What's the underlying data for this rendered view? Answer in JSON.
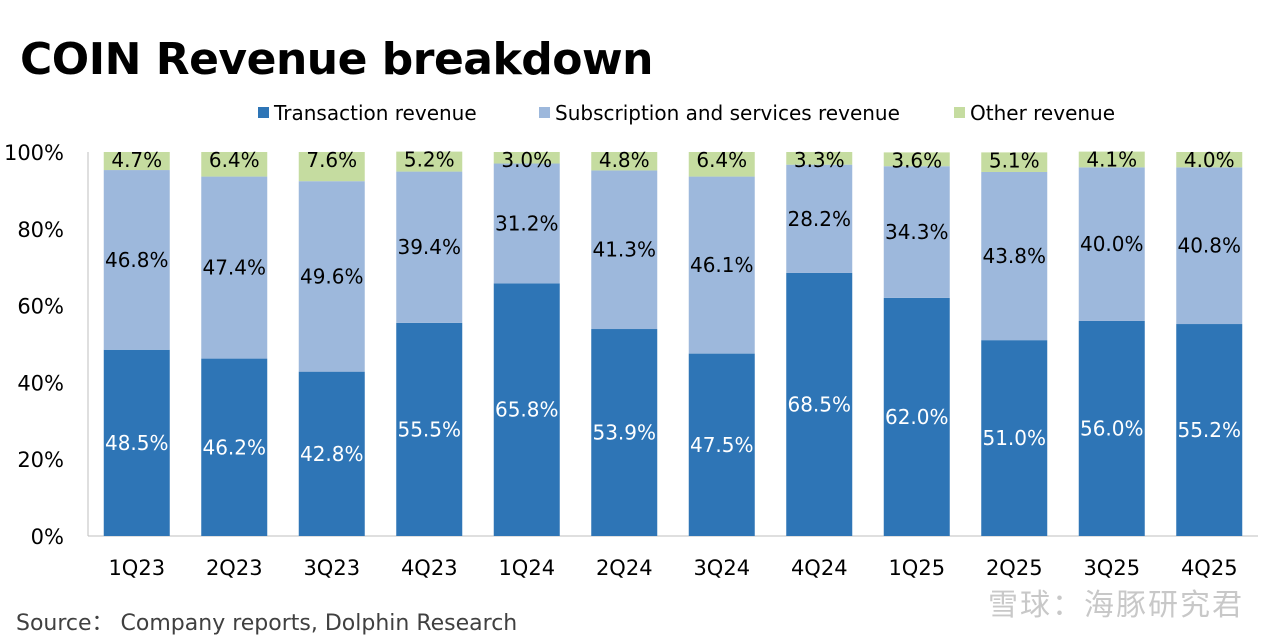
{
  "title": "COIN Revenue breakdown",
  "source": "Source：  Company reports, Dolphin Research",
  "watermark": "雪球：海豚研究君",
  "chart_data": {
    "type": "bar",
    "stacked": true,
    "percent": true,
    "categories": [
      "1Q23",
      "2Q23",
      "3Q23",
      "4Q23",
      "1Q24",
      "2Q24",
      "3Q24",
      "4Q24",
      "1Q25",
      "2Q25",
      "3Q25",
      "4Q25"
    ],
    "series": [
      {
        "name": "Transaction revenue",
        "color": "#2e75b6",
        "values": [
          48.5,
          46.2,
          42.8,
          55.5,
          65.8,
          53.9,
          47.5,
          68.5,
          62.0,
          51.0,
          56.0,
          55.2
        ]
      },
      {
        "name": "Subscription and services revenue",
        "color": "#9db8dc",
        "values": [
          46.8,
          47.4,
          49.6,
          39.4,
          31.2,
          41.3,
          46.1,
          28.2,
          34.3,
          43.8,
          40.0,
          40.8
        ]
      },
      {
        "name": "Other revenue",
        "color": "#c5dca0",
        "values": [
          4.7,
          6.4,
          7.6,
          5.2,
          3.0,
          4.8,
          6.4,
          3.3,
          3.6,
          5.1,
          4.1,
          4.0
        ]
      }
    ],
    "ylim": [
      0,
      100
    ],
    "yticks": [
      "0%",
      "20%",
      "40%",
      "60%",
      "80%",
      "100%"
    ],
    "legend_position": "top",
    "grid": false
  }
}
